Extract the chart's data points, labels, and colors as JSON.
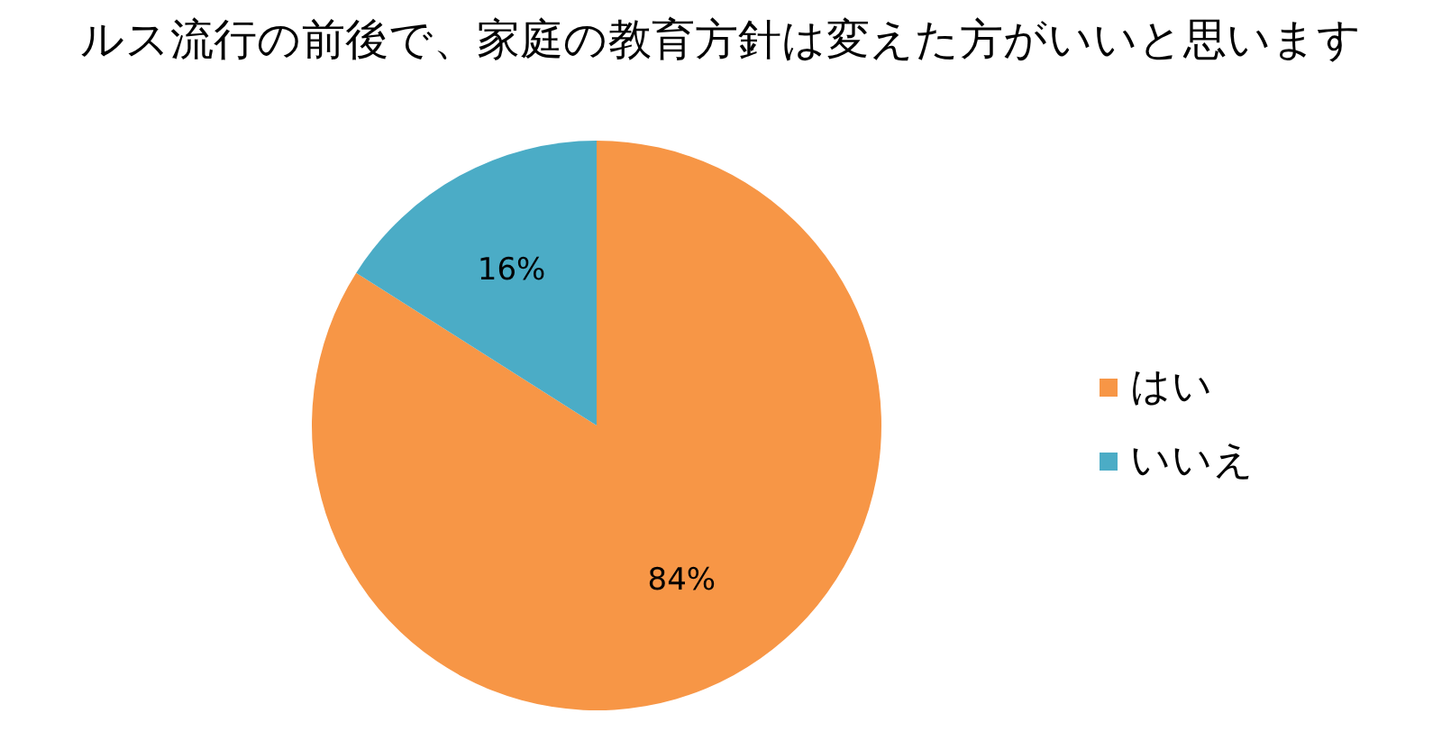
{
  "chart_data": {
    "type": "pie",
    "title": "ルス流行の前後で、家庭の教育方針は変えた方がいいと思います",
    "categories": [
      "はい",
      "いいえ"
    ],
    "values": [
      84,
      16
    ],
    "colors": [
      "#f79646",
      "#4bacc6"
    ],
    "value_labels": [
      "84%",
      "16%"
    ],
    "legend": "right"
  }
}
